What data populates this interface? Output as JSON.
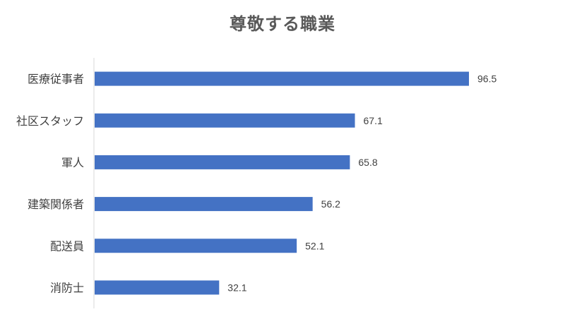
{
  "chart_data": {
    "type": "bar",
    "orientation": "horizontal",
    "title": "尊敬する職業",
    "categories": [
      "医療従事者",
      "社区スタッフ",
      "軍人",
      "建築関係者",
      "配送員",
      "消防士"
    ],
    "values": [
      96.5,
      67.1,
      65.8,
      56.2,
      52.1,
      32.1
    ],
    "xlabel": "",
    "ylabel": "",
    "xlim": [
      0,
      120
    ],
    "grid": false,
    "legend": "none",
    "bar_color": "#4472C4",
    "axis_color": "#D9D9D9"
  }
}
